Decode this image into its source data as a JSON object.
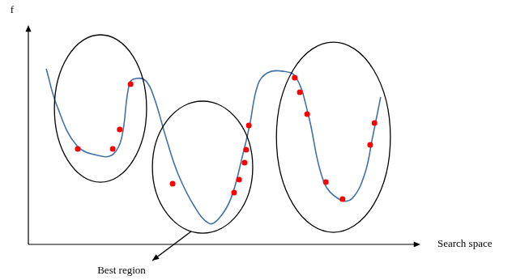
{
  "chart_data": {
    "type": "line",
    "x_label": "Search space",
    "y_label": "f",
    "xlim": [
      0,
      100
    ],
    "ylim": [
      0,
      100
    ],
    "tick_labels": false,
    "grid": false,
    "series": [
      {
        "type": "line",
        "color": "#3f72a6",
        "line_style": "solid",
        "x": [
          4.6,
          7.3,
          12.5,
          18.8,
          21.9,
          24.0,
          26.0,
          27.7,
          30.2,
          32.3,
          35.4,
          38.5,
          42.7,
          46.5,
          49.0,
          52.1,
          55.2,
          56.9,
          59.0,
          61.5,
          65.6,
          68.8,
          71.9,
          76.0,
          80.2,
          83.3,
          86.5,
          88.5,
          90.6
        ],
        "values": [
          81.3,
          64.4,
          45.7,
          40.8,
          41.9,
          49.4,
          74.5,
          76.8,
          75.7,
          68.2,
          49.4,
          32.6,
          17.6,
          9.7,
          12.0,
          21.3,
          41.9,
          55.1,
          73.8,
          79.4,
          80.1,
          77.5,
          60.7,
          28.8,
          20.6,
          21.3,
          32.6,
          49.4,
          68.2
        ]
      },
      {
        "type": "scatter",
        "color": "#ff0000",
        "marker": "circle",
        "x": [
          26.3,
          23.5,
          21.7,
          12.7,
          37.1,
          56.7,
          56.0,
          55.6,
          54.2,
          52.9,
          68.5,
          69.8,
          71.7,
          76.5,
          80.8,
          89.0,
          87.9
        ],
        "values": [
          74.2,
          53.2,
          44.2,
          44.2,
          28.1,
          55.1,
          43.8,
          37.8,
          30.0,
          24.0,
          77.2,
          70.4,
          60.3,
          28.8,
          21.0,
          56.2,
          46.1
        ]
      }
    ],
    "regions": [
      {
        "xlim": [
          6.7,
          30.4
        ],
        "ylim": [
          28.8,
          97.0
        ]
      },
      {
        "xlim": [
          31.9,
          57.7
        ],
        "ylim": [
          5.2,
          66.3
        ]
      },
      {
        "xlim": [
          63.8,
          93.1
        ],
        "ylim": [
          5.6,
          93.6
        ]
      }
    ],
    "annotation": {
      "text": "Best region",
      "region": 1
    }
  }
}
